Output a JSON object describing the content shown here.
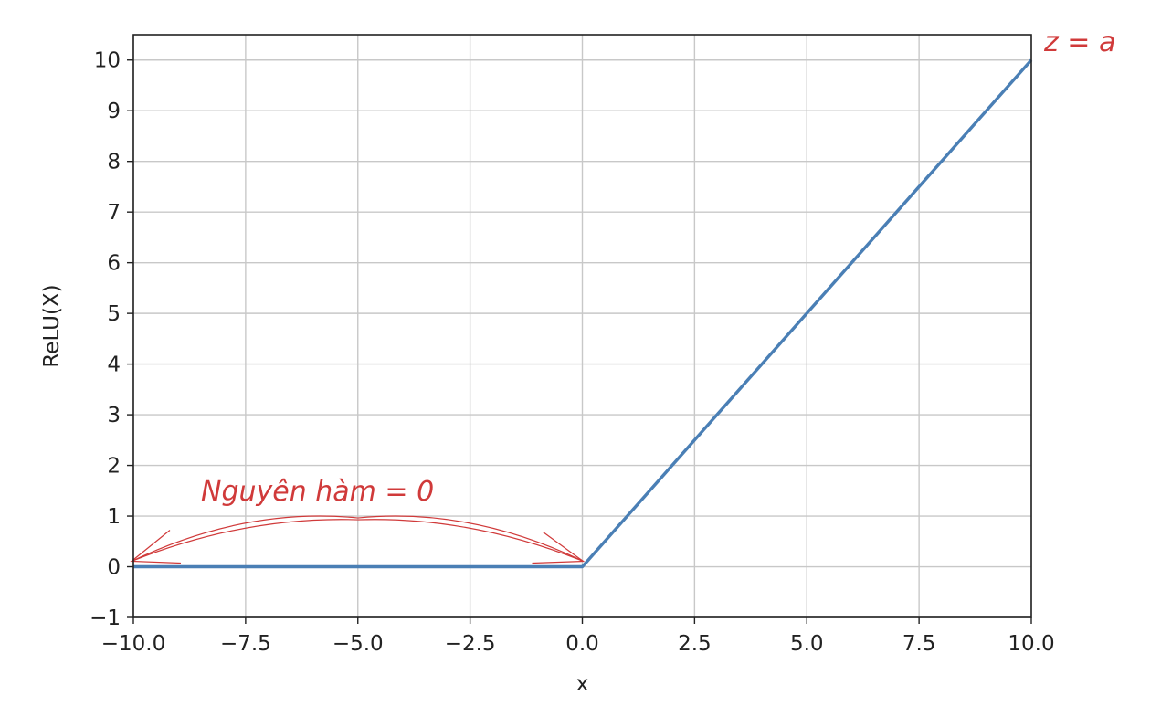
{
  "chart_data": {
    "type": "line",
    "title": "",
    "xlabel": "x",
    "ylabel": "ReLU(X)",
    "xlim": [
      -10,
      10
    ],
    "ylim": [
      -1,
      10.5
    ],
    "grid": true,
    "x_ticks": [
      -10,
      -7.5,
      -5,
      -2.5,
      0,
      2.5,
      5,
      7.5,
      10
    ],
    "x_tick_labels": [
      "−10.0",
      "−7.5",
      "−5.0",
      "−2.5",
      "0.0",
      "2.5",
      "5.0",
      "7.5",
      "10.0"
    ],
    "y_ticks": [
      -1,
      0,
      1,
      2,
      3,
      4,
      5,
      6,
      7,
      8,
      9,
      10
    ],
    "y_tick_labels": [
      "−1",
      "0",
      "1",
      "2",
      "3",
      "4",
      "5",
      "6",
      "7",
      "8",
      "9",
      "10"
    ],
    "series": [
      {
        "x": [
          -10,
          0,
          10
        ],
        "y": [
          0,
          0,
          10
        ],
        "color": "#4a7fb5"
      }
    ],
    "annotations": [
      {
        "text": "z = a",
        "color": "#d03a3a"
      },
      {
        "text": "Nguyên hàm = 0",
        "color": "#d03a3a"
      }
    ]
  }
}
